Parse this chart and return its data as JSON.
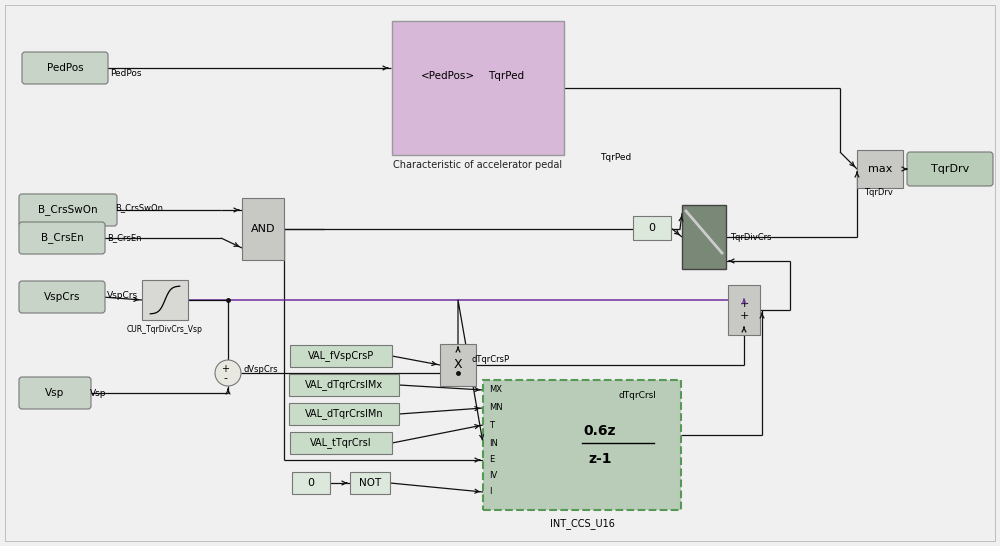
{
  "bg": "#f0f0f0",
  "colors": {
    "pill_in": "#c8d4c8",
    "pill_out": "#b8ccb8",
    "pink_block": "#d8b8d8",
    "gray_block": "#c8c8c4",
    "green_block": "#b8ccb8",
    "val_block": "#c8dcc8",
    "const_block": "#dce8dc",
    "sat_block": "#d8d8d4",
    "sum_bg": "#e8e8e0",
    "mux_dark": "#7a8878",
    "line_black": "#111111",
    "line_purple": "#7030a0",
    "border": "#888888"
  },
  "wire_labels": {
    "PedPos": "PedPos",
    "B_CrsSwOn": "B_CrsSwOn",
    "B_CrsEn": "B_CrsEn",
    "VspCrs": "VspCrs",
    "Vsp": "Vsp",
    "TqrPed": "TqrPed",
    "TqrDrv": "TqrDrv",
    "dVspCrs": "dVspCrs",
    "dTqrCrsP": "dTqrCrsP",
    "TqrDivCrs": "TqrDivCrs",
    "dTqrCrsI": "dTqrCrsI",
    "CUR": "CUR_TqrDivCrs_Vsp"
  },
  "block_labels": {
    "char": "Characteristic of accelerator pedal",
    "int": "INT_CCS_U16",
    "tf_num": "0.6z",
    "tf_den": "z-1",
    "dTqrCrsI": "dTqrCrsI"
  }
}
